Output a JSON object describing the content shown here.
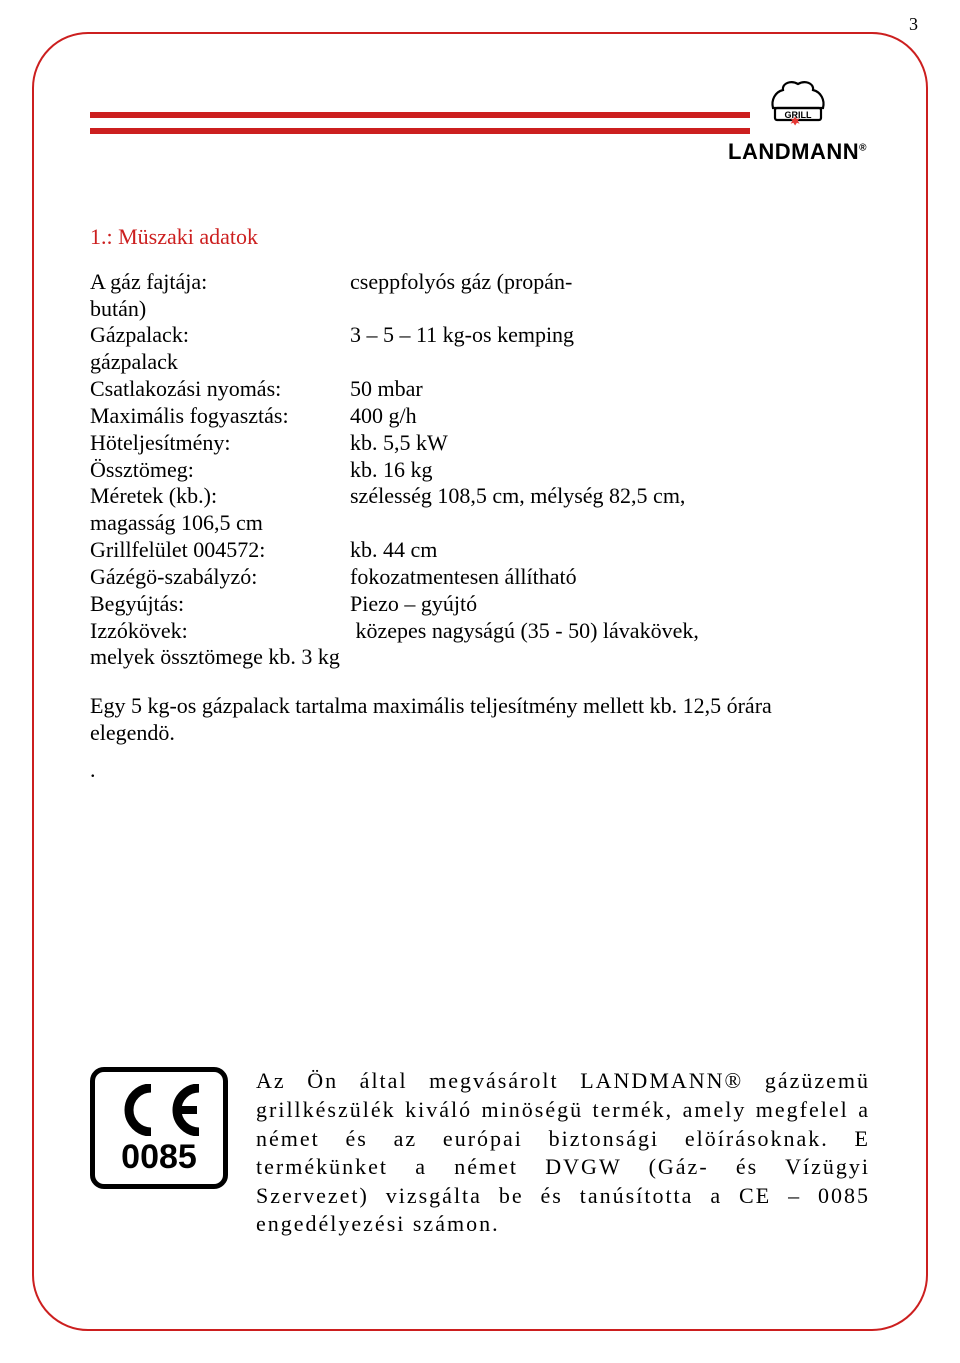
{
  "page_number": "3",
  "colors": {
    "accent": "#cc1f1f",
    "leaf": "#e53935",
    "text": "#000000",
    "background": "#ffffff"
  },
  "brand": {
    "name": "LANDMANN",
    "crown_label": "GRILL",
    "registered": "®"
  },
  "section": {
    "title": "1.: Müszaki adatok",
    "specs": [
      {
        "label": "A gáz fajtája:",
        "value": "cseppfolyós gáz (propán-",
        "cont": "bután)"
      },
      {
        "label": "Gázpalack:",
        "value": "3 – 5 – 11 kg-os kemping",
        "cont": "gázpalack"
      },
      {
        "label": "Csatlakozási nyomás:",
        "value": "50 mbar"
      },
      {
        "label": "Maximális fogyasztás:",
        "value": "400 g/h"
      },
      {
        "label": "Höteljesítmény:",
        "value": "kb. 5,5 kW"
      },
      {
        "label": "Össztömeg:",
        "value": "kb. 16 kg"
      },
      {
        "label": "Méretek (kb.):",
        "value": "szélesség 108,5 cm, mélység 82,5 cm,",
        "cont": "magasság 106,5 cm"
      },
      {
        "label": "Grillfelület 004572:",
        "value": "kb. 44 cm"
      },
      {
        "label": "Gázégö-szabályzó:",
        "value": "fokozatmentesen állítható"
      },
      {
        "label": "Begyújtás:",
        "value": "Piezo – gyújtó"
      },
      {
        "label": "Izzókövek:",
        "value": " közepes nagyságú (35 - 50) lávakövek,",
        "cont": "melyek össztömege kb. 3 kg"
      }
    ],
    "note": "Egy 5 kg-os gázpalack tartalma maximális teljesítmény mellett kb. 12,5 órára elegendö.",
    "dot": "."
  },
  "ce": {
    "mark": "CE",
    "number": "0085"
  },
  "footer_text": "Az Ön által megvásárolt LANDMANN® gázüzemü grillkészülék kiváló minöségü termék, amely megfelel a német és az európai biztonsági elöírásoknak. E termékünket a német DVGW (Gáz- és Vízügyi Szervezet) vizsgálta be és tanúsította a CE – 0085 engedélyezési számon."
}
